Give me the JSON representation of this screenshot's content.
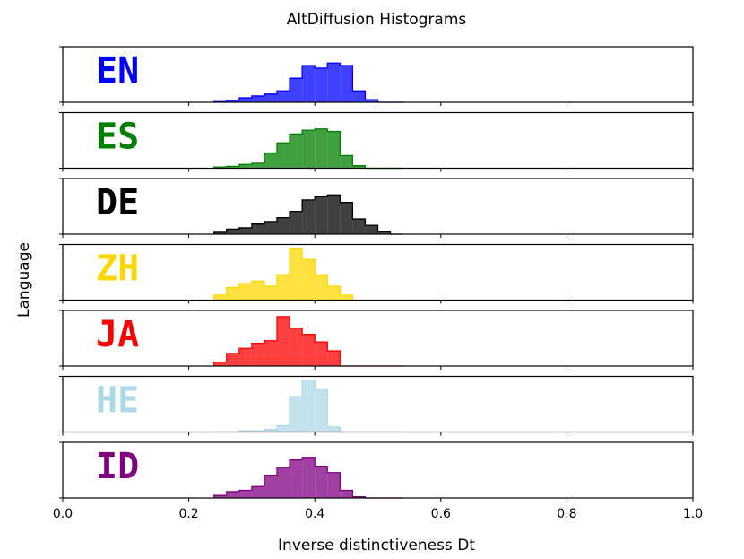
{
  "chart_data": {
    "type": "histogram",
    "title": "AltDiffusion Histograms",
    "xlabel": "Inverse distinctiveness Dt",
    "ylabel": "Language",
    "xlim": [
      0.0,
      1.0
    ],
    "xticks": [
      "0.0",
      "0.2",
      "0.4",
      "0.6",
      "0.8",
      "1.0"
    ],
    "bin_width": 0.02,
    "bins_start": 0.24,
    "series": [
      {
        "name": "EN",
        "color": "#0000ff",
        "counts": [
          1,
          3,
          7,
          10,
          13,
          18,
          38,
          58,
          54,
          62,
          58,
          18,
          4,
          0,
          0
        ]
      },
      {
        "name": "ES",
        "color": "#008000",
        "counts": [
          2,
          3,
          6,
          8,
          24,
          40,
          54,
          60,
          62,
          58,
          20,
          4,
          0,
          0,
          0
        ]
      },
      {
        "name": "DE",
        "color": "#000000",
        "counts": [
          3,
          8,
          10,
          16,
          20,
          26,
          36,
          54,
          60,
          62,
          50,
          24,
          14,
          4,
          0
        ]
      },
      {
        "name": "ZH",
        "color": "#ffd700",
        "counts": [
          8,
          20,
          26,
          30,
          22,
          40,
          82,
          64,
          40,
          22,
          8,
          0,
          0,
          0,
          0
        ]
      },
      {
        "name": "JA",
        "color": "#ff0000",
        "counts": [
          6,
          20,
          28,
          36,
          40,
          78,
          60,
          50,
          38,
          24,
          0,
          0,
          0,
          0,
          0
        ]
      },
      {
        "name": "HE",
        "color": "#add8e6",
        "counts": [
          0,
          0,
          2,
          2,
          4,
          10,
          56,
          82,
          68,
          8,
          0,
          0,
          0,
          0,
          0
        ]
      },
      {
        "name": "ID",
        "color": "#800080",
        "counts": [
          4,
          10,
          12,
          18,
          36,
          48,
          60,
          64,
          50,
          40,
          12,
          2,
          0,
          0,
          0
        ]
      }
    ]
  }
}
